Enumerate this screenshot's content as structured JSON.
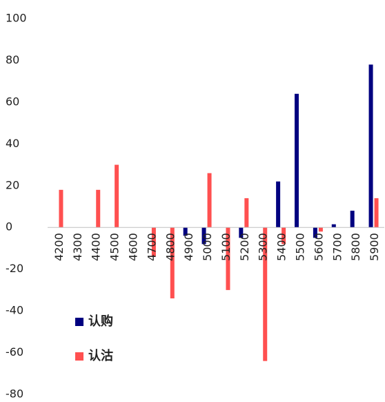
{
  "chart_data": {
    "type": "bar",
    "categories": [
      "4200",
      "4300",
      "4400",
      "4500",
      "4600",
      "4700",
      "4800",
      "4900",
      "5000",
      "5100",
      "5200",
      "5300",
      "5400",
      "5500",
      "5600",
      "5700",
      "5800",
      "5900"
    ],
    "series": [
      {
        "name": "认购",
        "color": "#000080",
        "values": [
          0,
          0,
          0,
          0,
          0,
          0,
          0,
          -4,
          -8,
          0,
          -5,
          0,
          22,
          64,
          -5,
          1.5,
          8,
          78
        ]
      },
      {
        "name": "认沽",
        "color": "#ff5050",
        "values": [
          18,
          0,
          18,
          30,
          0,
          -14,
          -34,
          0,
          26,
          -30,
          14,
          -64,
          -8,
          0,
          -2,
          0,
          0,
          14
        ]
      }
    ],
    "ylim": [
      -80,
      100
    ],
    "yticks": [
      -80,
      -60,
      -40,
      -20,
      0,
      20,
      40,
      60,
      80,
      100
    ],
    "legend": "lower-left"
  }
}
